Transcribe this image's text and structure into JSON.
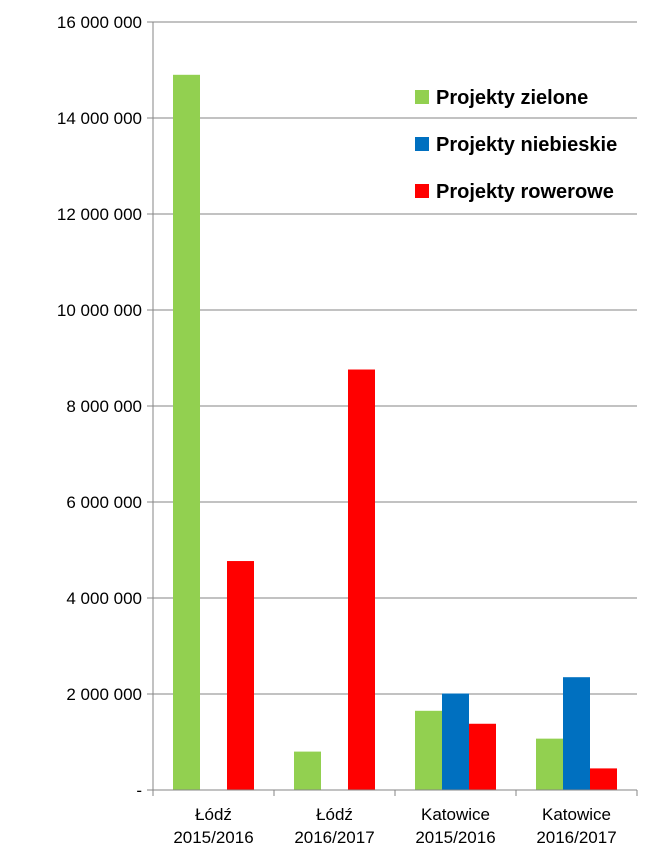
{
  "chart_data": {
    "type": "bar",
    "categories": [
      [
        "Łódź",
        "2015/2016"
      ],
      [
        "Łódź",
        "2016/2017"
      ],
      [
        "Katowice",
        "2015/2016"
      ],
      [
        "Katowice",
        "2016/2017"
      ]
    ],
    "series": [
      {
        "name": "Projekty zielone",
        "color": "#92d050",
        "values": [
          14900000,
          800000,
          1650000,
          1070000
        ]
      },
      {
        "name": "Projekty niebieskie",
        "color": "#0070c0",
        "values": [
          0,
          0,
          2010000,
          2350000
        ]
      },
      {
        "name": "Projekty rowerowe",
        "color": "#ff0000",
        "values": [
          4770000,
          8760000,
          1380000,
          450000
        ]
      }
    ],
    "y_ticks": [
      {
        "value": 0,
        "label": "-"
      },
      {
        "value": 2000000,
        "label": "2 000 000"
      },
      {
        "value": 4000000,
        "label": "4 000 000"
      },
      {
        "value": 6000000,
        "label": "6 000 000"
      },
      {
        "value": 8000000,
        "label": "8 000 000"
      },
      {
        "value": 10000000,
        "label": "10 000 000"
      },
      {
        "value": 12000000,
        "label": "12 000 000"
      },
      {
        "value": 14000000,
        "label": "14 000 000"
      },
      {
        "value": 16000000,
        "label": "16 000 000"
      }
    ],
    "ylim": [
      0,
      16000000
    ],
    "title": "",
    "xlabel": "",
    "ylabel": "",
    "grid": true,
    "legend_position": "top-right"
  }
}
